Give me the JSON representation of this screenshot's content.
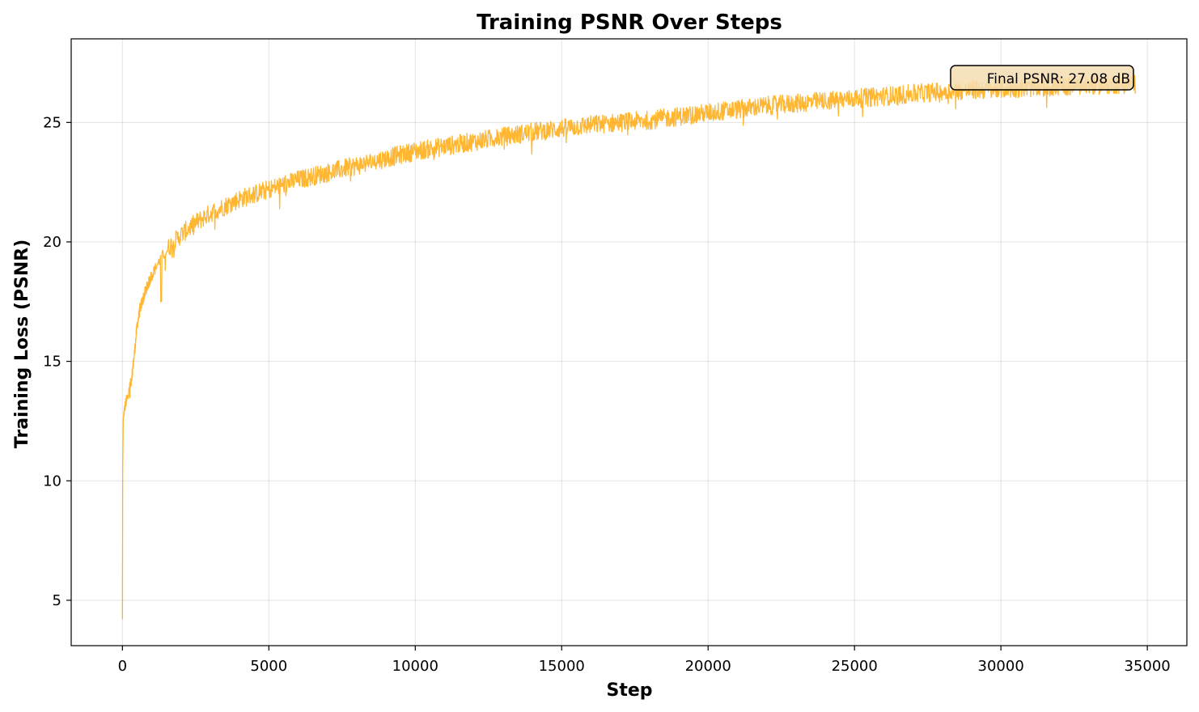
{
  "chart_data": {
    "type": "line",
    "title": "Training PSNR Over Steps",
    "xlabel": "Step",
    "ylabel": "Training Loss (PSNR)",
    "xlim": [
      -1750,
      36350
    ],
    "ylim": [
      3.1,
      28.5
    ],
    "xticks": [
      0,
      5000,
      10000,
      15000,
      20000,
      25000,
      30000,
      35000
    ],
    "yticks": [
      5,
      10,
      15,
      20,
      25
    ],
    "grid": true,
    "color": "#ffa500",
    "annotation": {
      "text": "Final PSNR: 27.08 dB",
      "position": "top-right"
    },
    "series": [
      {
        "x": [
          0,
          10,
          30,
          60,
          100,
          150,
          200,
          300,
          400,
          500,
          600,
          800,
          1000,
          1300,
          1600,
          2000,
          2500,
          3000,
          4000,
          5000,
          6000,
          7000,
          8000,
          9000,
          10000,
          11000,
          12000,
          13000,
          14000,
          15000,
          16000,
          17000,
          18000,
          19000,
          20000,
          21000,
          22000,
          23000,
          24000,
          25000,
          26000,
          27000,
          28000,
          29000,
          30000,
          31000,
          32000,
          33000,
          34000,
          34600
        ],
        "y": [
          4.2,
          10.5,
          12.6,
          12.9,
          13.2,
          13.4,
          13.6,
          14.2,
          15.2,
          16.5,
          17.2,
          18.0,
          18.6,
          19.3,
          19.8,
          20.3,
          20.8,
          21.2,
          21.8,
          22.2,
          22.6,
          22.9,
          23.2,
          23.5,
          23.8,
          24.0,
          24.2,
          24.4,
          24.6,
          24.75,
          24.9,
          25.0,
          25.1,
          25.25,
          25.4,
          25.55,
          25.7,
          25.8,
          25.9,
          26.0,
          26.1,
          26.2,
          26.3,
          26.35,
          26.4,
          26.45,
          26.5,
          26.55,
          26.6,
          26.6
        ],
        "noise_amplitude": 0.4
      }
    ]
  }
}
